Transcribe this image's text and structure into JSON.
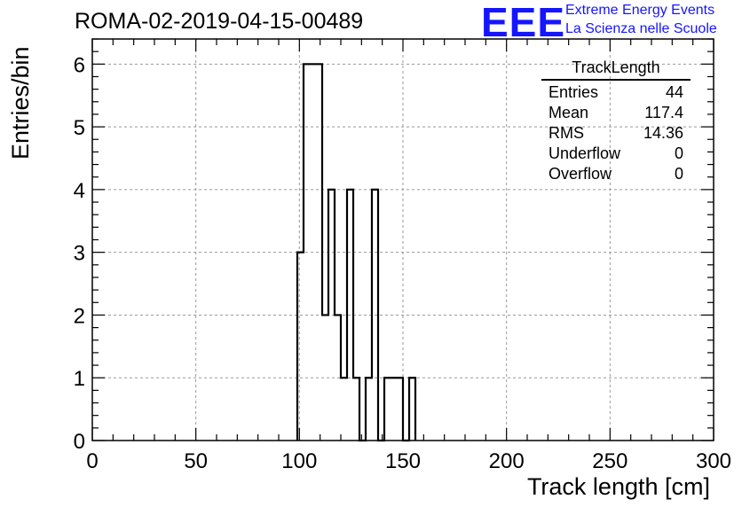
{
  "title": "ROMA-02-2019-04-15-00489",
  "logo": {
    "text": "EEE",
    "line1": "Extreme Energy Events",
    "line2": "La Scienza nelle Scuole",
    "color": "#1515ff"
  },
  "stats_box": {
    "title": "TrackLength",
    "rows": [
      {
        "label": "Entries",
        "value": "44"
      },
      {
        "label": "Mean",
        "value": "117.4"
      },
      {
        "label": "RMS",
        "value": "14.36"
      },
      {
        "label": "Underflow",
        "value": "0"
      },
      {
        "label": "Overflow",
        "value": "0"
      }
    ]
  },
  "chart_data": {
    "type": "bar",
    "style": "step-histogram",
    "xlabel": "Track length [cm]",
    "ylabel": "Entries/bin",
    "xlim": [
      0,
      300
    ],
    "ylim": [
      0,
      6.4
    ],
    "xticks": [
      0,
      50,
      100,
      150,
      200,
      250,
      300
    ],
    "yticks": [
      0,
      1,
      2,
      3,
      4,
      5,
      6
    ],
    "grid": true,
    "bin_width": 3,
    "bins": [
      {
        "x0": 99,
        "count": 3
      },
      {
        "x0": 102,
        "count": 6
      },
      {
        "x0": 105,
        "count": 6
      },
      {
        "x0": 108,
        "count": 6
      },
      {
        "x0": 111,
        "count": 2
      },
      {
        "x0": 114,
        "count": 4
      },
      {
        "x0": 117,
        "count": 2
      },
      {
        "x0": 120,
        "count": 1
      },
      {
        "x0": 123,
        "count": 4
      },
      {
        "x0": 126,
        "count": 1
      },
      {
        "x0": 129,
        "count": 0
      },
      {
        "x0": 132,
        "count": 1
      },
      {
        "x0": 135,
        "count": 4
      },
      {
        "x0": 138,
        "count": 0
      },
      {
        "x0": 141,
        "count": 1
      },
      {
        "x0": 144,
        "count": 1
      },
      {
        "x0": 147,
        "count": 1
      },
      {
        "x0": 150,
        "count": 0
      },
      {
        "x0": 153,
        "count": 1
      }
    ]
  }
}
